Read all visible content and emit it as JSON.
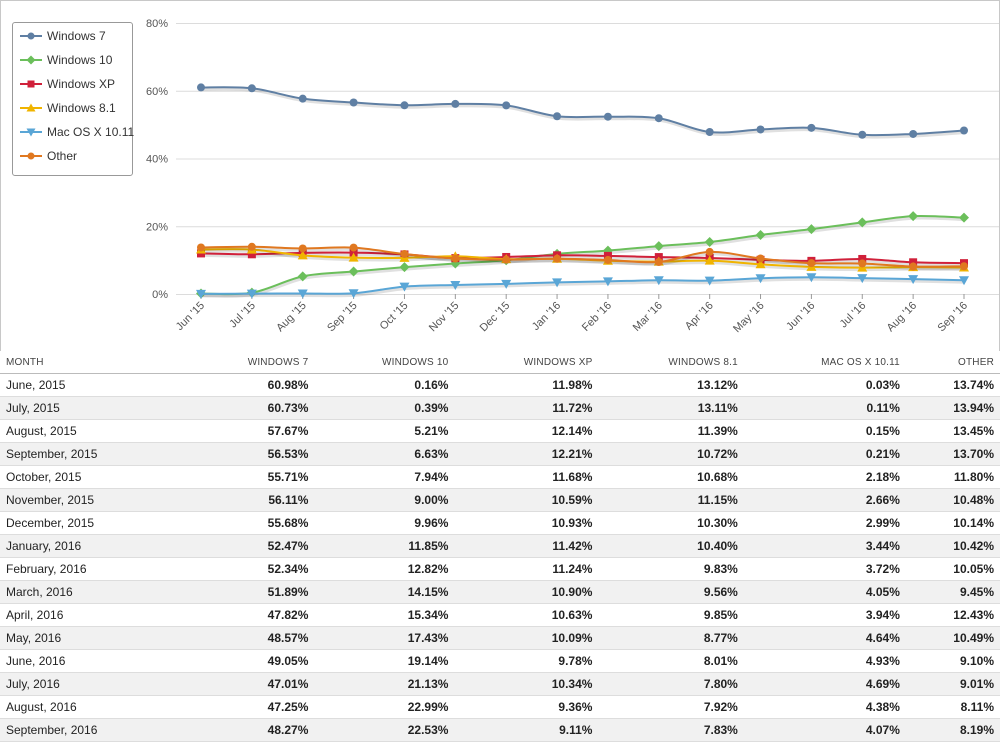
{
  "chart_data": {
    "type": "line",
    "categories": [
      "Jun '15",
      "Jul '15",
      "Aug '15",
      "Sep '15",
      "Oct '15",
      "Nov '15",
      "Dec '15",
      "Jan '16",
      "Feb '16",
      "Mar '16",
      "Apr '16",
      "May '16",
      "Jun '16",
      "Jul '16",
      "Aug '16",
      "Sep '16"
    ],
    "ylim": [
      0,
      80
    ],
    "yticks": [
      "0%",
      "20%",
      "40%",
      "60%",
      "80%"
    ],
    "ytick_values": [
      0,
      20,
      40,
      60,
      80
    ],
    "legend_position": "top-left",
    "grid": "horizontal",
    "series": [
      {
        "name": "Windows 7",
        "color": "#5f7fa3",
        "marker": "circle",
        "values": [
          60.98,
          60.73,
          57.67,
          56.53,
          55.71,
          56.11,
          55.68,
          52.47,
          52.34,
          51.89,
          47.82,
          48.57,
          49.05,
          47.01,
          47.25,
          48.27
        ]
      },
      {
        "name": "Windows 10",
        "color": "#6bbf5b",
        "marker": "diamond",
        "values": [
          0.16,
          0.39,
          5.21,
          6.63,
          7.94,
          9.0,
          9.96,
          11.85,
          12.82,
          14.15,
          15.34,
          17.43,
          19.14,
          21.13,
          22.99,
          22.53
        ]
      },
      {
        "name": "Windows XP",
        "color": "#d0203a",
        "marker": "square",
        "values": [
          11.98,
          11.72,
          12.14,
          12.21,
          11.68,
          10.59,
          10.93,
          11.42,
          11.24,
          10.9,
          10.63,
          10.09,
          9.78,
          10.34,
          9.36,
          9.11
        ]
      },
      {
        "name": "Windows 8.1",
        "color": "#f0b400",
        "marker": "triangle",
        "values": [
          13.12,
          13.11,
          11.39,
          10.72,
          10.68,
          11.15,
          10.3,
          10.4,
          9.83,
          9.56,
          9.85,
          8.77,
          8.01,
          7.8,
          7.92,
          7.83
        ]
      },
      {
        "name": "Mac OS X 10.11",
        "color": "#5aa6d6",
        "marker": "triangle-down",
        "values": [
          0.03,
          0.11,
          0.15,
          0.21,
          2.18,
          2.66,
          2.99,
          3.44,
          3.72,
          4.05,
          3.94,
          4.64,
          4.93,
          4.69,
          4.38,
          4.07
        ]
      },
      {
        "name": "Other",
        "color": "#e07820",
        "marker": "circle",
        "values": [
          13.74,
          13.94,
          13.45,
          13.7,
          11.8,
          10.48,
          10.14,
          10.42,
          10.05,
          9.45,
          12.43,
          10.49,
          9.1,
          9.01,
          8.11,
          8.19
        ]
      }
    ]
  },
  "table": {
    "headers": [
      "MONTH",
      "WINDOWS 7",
      "WINDOWS 10",
      "WINDOWS XP",
      "WINDOWS 8.1",
      "MAC OS X 10.11",
      "OTHER"
    ],
    "rows": [
      [
        "June, 2015",
        "60.98%",
        "0.16%",
        "11.98%",
        "13.12%",
        "0.03%",
        "13.74%"
      ],
      [
        "July, 2015",
        "60.73%",
        "0.39%",
        "11.72%",
        "13.11%",
        "0.11%",
        "13.94%"
      ],
      [
        "August, 2015",
        "57.67%",
        "5.21%",
        "12.14%",
        "11.39%",
        "0.15%",
        "13.45%"
      ],
      [
        "September, 2015",
        "56.53%",
        "6.63%",
        "12.21%",
        "10.72%",
        "0.21%",
        "13.70%"
      ],
      [
        "October, 2015",
        "55.71%",
        "7.94%",
        "11.68%",
        "10.68%",
        "2.18%",
        "11.80%"
      ],
      [
        "November, 2015",
        "56.11%",
        "9.00%",
        "10.59%",
        "11.15%",
        "2.66%",
        "10.48%"
      ],
      [
        "December, 2015",
        "55.68%",
        "9.96%",
        "10.93%",
        "10.30%",
        "2.99%",
        "10.14%"
      ],
      [
        "January, 2016",
        "52.47%",
        "11.85%",
        "11.42%",
        "10.40%",
        "3.44%",
        "10.42%"
      ],
      [
        "February, 2016",
        "52.34%",
        "12.82%",
        "11.24%",
        "9.83%",
        "3.72%",
        "10.05%"
      ],
      [
        "March, 2016",
        "51.89%",
        "14.15%",
        "10.90%",
        "9.56%",
        "4.05%",
        "9.45%"
      ],
      [
        "April, 2016",
        "47.82%",
        "15.34%",
        "10.63%",
        "9.85%",
        "3.94%",
        "12.43%"
      ],
      [
        "May, 2016",
        "48.57%",
        "17.43%",
        "10.09%",
        "8.77%",
        "4.64%",
        "10.49%"
      ],
      [
        "June, 2016",
        "49.05%",
        "19.14%",
        "9.78%",
        "8.01%",
        "4.93%",
        "9.10%"
      ],
      [
        "July, 2016",
        "47.01%",
        "21.13%",
        "10.34%",
        "7.80%",
        "4.69%",
        "9.01%"
      ],
      [
        "August, 2016",
        "47.25%",
        "22.99%",
        "9.36%",
        "7.92%",
        "4.38%",
        "8.11%"
      ],
      [
        "September, 2016",
        "48.27%",
        "22.53%",
        "9.11%",
        "7.83%",
        "4.07%",
        "8.19%"
      ]
    ]
  }
}
